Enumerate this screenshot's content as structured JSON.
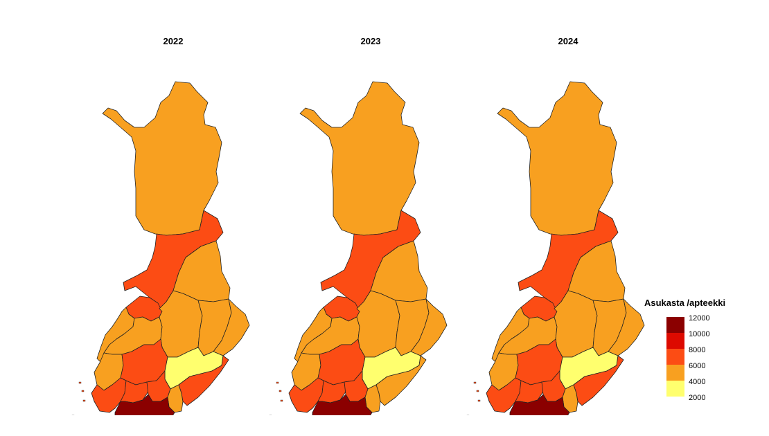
{
  "maps": [
    {
      "year": "2022",
      "regions": {
        "lappi": 5000,
        "pohjois_pohjanmaa": 7000,
        "kainuu": 5000,
        "keski_pohjanmaa": 7000,
        "pohjanmaa": 5000,
        "etela_pohjanmaa": 5000,
        "keski_suomi": 5000,
        "pohjois_savo": 5000,
        "pohjois_karjala": 5000,
        "satakunta": 5000,
        "pirkanmaa": 7000,
        "etela_savo": 3000,
        "varsinais_suomi": 7000,
        "kanta_hame": 7000,
        "paijat_hame": 7000,
        "kymenlaakso": 5000,
        "etela_karjala": 7000,
        "uusimaa": 11000,
        "ahvenanmaa": 7000
      }
    },
    {
      "year": "2023",
      "regions": {
        "lappi": 5000,
        "pohjois_pohjanmaa": 7000,
        "kainuu": 5000,
        "keski_pohjanmaa": 7000,
        "pohjanmaa": 5000,
        "etela_pohjanmaa": 5000,
        "keski_suomi": 5000,
        "pohjois_savo": 5000,
        "pohjois_karjala": 5000,
        "satakunta": 5000,
        "pirkanmaa": 7000,
        "etela_savo": 3000,
        "varsinais_suomi": 7000,
        "kanta_hame": 7000,
        "paijat_hame": 7000,
        "kymenlaakso": 5000,
        "etela_karjala": 5000,
        "uusimaa": 11000,
        "ahvenanmaa": 7000
      }
    },
    {
      "year": "2024",
      "regions": {
        "lappi": 5000,
        "pohjois_pohjanmaa": 7000,
        "kainuu": 5000,
        "keski_pohjanmaa": 7000,
        "pohjanmaa": 5000,
        "etela_pohjanmaa": 5000,
        "keski_suomi": 5000,
        "pohjois_savo": 5000,
        "pohjois_karjala": 5000,
        "satakunta": 5000,
        "pirkanmaa": 7000,
        "etela_savo": 3000,
        "varsinais_suomi": 7000,
        "kanta_hame": 7000,
        "paijat_hame": 7000,
        "kymenlaakso": 5000,
        "etela_karjala": 7000,
        "uusimaa": 11000,
        "ahvenanmaa": 7000
      }
    }
  ],
  "legend": {
    "title": "Asukasta /apteekki",
    "ticks": [
      "12000",
      "10000",
      "8000",
      "6000",
      "4000",
      "2000"
    ],
    "bins": [
      {
        "min": 10000,
        "max": 12000,
        "color": "#8b0000"
      },
      {
        "min": 8000,
        "max": 10000,
        "color": "#dd0a00"
      },
      {
        "min": 6000,
        "max": 8000,
        "color": "#fc4c14"
      },
      {
        "min": 4000,
        "max": 6000,
        "color": "#f8a020"
      },
      {
        "min": 2000,
        "max": 4000,
        "color": "#ffff6e"
      }
    ]
  }
}
